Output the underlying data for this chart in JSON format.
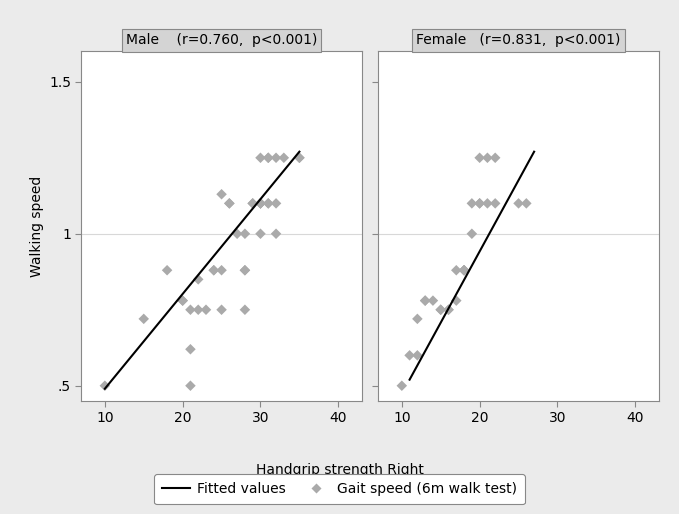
{
  "male_x": [
    10,
    15,
    18,
    20,
    20,
    21,
    21,
    21,
    22,
    22,
    23,
    24,
    24,
    25,
    25,
    25,
    26,
    26,
    27,
    28,
    28,
    28,
    28,
    29,
    29,
    30,
    30,
    30,
    30,
    30,
    30,
    31,
    31,
    31,
    31,
    32,
    32,
    32,
    33,
    35,
    35
  ],
  "male_y": [
    0.5,
    0.72,
    0.88,
    0.78,
    0.78,
    0.62,
    0.5,
    0.75,
    0.75,
    0.85,
    0.75,
    0.88,
    0.88,
    0.88,
    1.13,
    0.75,
    1.1,
    1.1,
    1.0,
    0.75,
    0.88,
    1.0,
    0.88,
    1.1,
    1.1,
    1.1,
    1.1,
    1.1,
    1.0,
    1.1,
    1.25,
    1.1,
    1.1,
    1.25,
    1.25,
    1.1,
    1.25,
    1.0,
    1.25,
    1.25,
    1.25
  ],
  "female_x": [
    10,
    11,
    12,
    12,
    13,
    13,
    14,
    15,
    15,
    16,
    16,
    17,
    17,
    18,
    18,
    18,
    18,
    19,
    19,
    20,
    20,
    20,
    21,
    21,
    22,
    22,
    25,
    26
  ],
  "female_y": [
    0.5,
    0.6,
    0.6,
    0.72,
    0.78,
    0.78,
    0.78,
    0.75,
    0.75,
    0.75,
    0.75,
    0.88,
    0.78,
    0.88,
    0.88,
    0.88,
    0.88,
    1.0,
    1.1,
    1.1,
    1.1,
    1.25,
    1.1,
    1.25,
    1.1,
    1.25,
    1.1,
    1.1
  ],
  "male_fit_x": [
    10,
    35
  ],
  "male_fit_y": [
    0.49,
    1.27
  ],
  "female_fit_x": [
    11,
    27
  ],
  "female_fit_y": [
    0.52,
    1.27
  ],
  "male_title": "Male    (r=0.760,  p<0.001)",
  "female_title": "Female   (r=0.831,  p<0.001)",
  "xlabel": "Handgrip strength Right",
  "ylabel": "Walking speed",
  "xlim": [
    7,
    43
  ],
  "ylim": [
    0.45,
    1.6
  ],
  "xticks": [
    10,
    20,
    30,
    40
  ],
  "yticks": [
    0.5,
    1.0,
    1.5
  ],
  "ytick_labels": [
    ".5",
    "1",
    "1.5"
  ],
  "point_color": "#AAAAAA",
  "line_color": "#000000",
  "bg_color": "#EBEBEB",
  "plot_bg": "#FFFFFF",
  "title_bg": "#D4D4D4",
  "grid_color": "#D8D8D8",
  "marker_size": 6,
  "font_size": 10
}
